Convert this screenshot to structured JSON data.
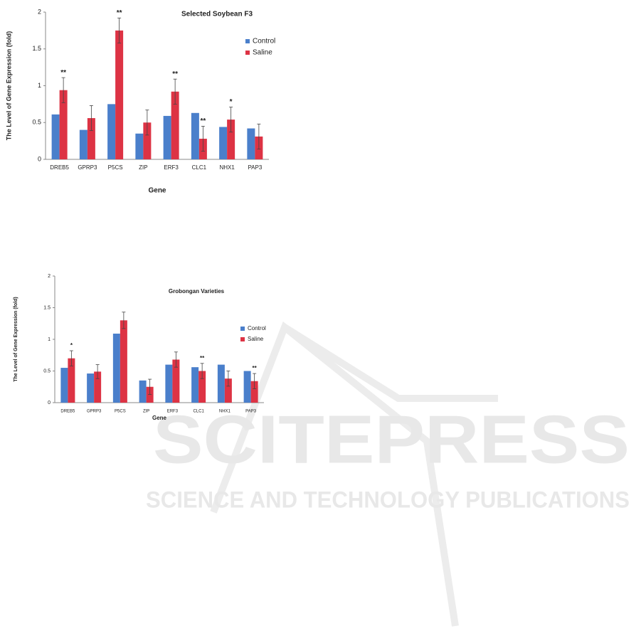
{
  "chart_data": [
    {
      "type": "bar",
      "title": "Selected Soybean F3",
      "x_label": "Gene",
      "y_label": "The Level of Gene Expression (fold)",
      "categories": [
        "DREB5",
        "GPRP3",
        "P5CS",
        "ZIP",
        "ERF3",
        "CLC1",
        "NHX1",
        "PAP3"
      ],
      "series": [
        {
          "name": "Control",
          "color": "#4a7fcb",
          "values": [
            0.61,
            0.4,
            0.75,
            0.35,
            0.59,
            0.63,
            0.44,
            0.42
          ]
        },
        {
          "name": "Saline",
          "color": "#dd3344",
          "values": [
            0.94,
            0.56,
            1.75,
            0.5,
            0.92,
            0.28,
            0.54,
            0.31
          ],
          "errors": [
            0.17,
            0.17,
            0.17,
            0.17,
            0.17,
            0.17,
            0.17,
            0.17
          ],
          "significance": [
            "**",
            null,
            "**",
            null,
            "**",
            "**",
            "*",
            null
          ]
        }
      ],
      "ylim": [
        0,
        2
      ],
      "yticks": [
        0,
        0.5,
        1,
        1.5,
        2
      ],
      "grid": false,
      "legend": "right"
    },
    {
      "type": "bar",
      "title": "Grobongan Varieties",
      "x_label": "Gene",
      "y_label": "The Level of Gene Expression (fold)",
      "categories": [
        "DREB5",
        "GPRP3",
        "P5CS",
        "ZIP",
        "ERF3",
        "CLC1",
        "NHX1",
        "PAP3"
      ],
      "series": [
        {
          "name": "Control",
          "color": "#4a7fcb",
          "values": [
            0.55,
            0.46,
            1.09,
            0.35,
            0.6,
            0.56,
            0.6,
            0.5
          ]
        },
        {
          "name": "Saline",
          "color": "#dd3344",
          "values": [
            0.7,
            0.49,
            1.3,
            0.25,
            0.68,
            0.5,
            0.38,
            0.34
          ],
          "errors": [
            0.12,
            0.11,
            0.13,
            0.12,
            0.12,
            0.12,
            0.12,
            0.12
          ],
          "significance": [
            "*",
            null,
            null,
            null,
            null,
            "**",
            null,
            "**"
          ]
        }
      ],
      "ylim": [
        0,
        2
      ],
      "yticks": [
        0,
        0.5,
        1,
        1.5,
        2
      ],
      "grid": false,
      "legend": "right"
    }
  ],
  "watermark": {
    "title": "SCITEPRESS",
    "subtitle": "SCIENCE AND TECHNOLOGY PUBLICATIONS"
  }
}
